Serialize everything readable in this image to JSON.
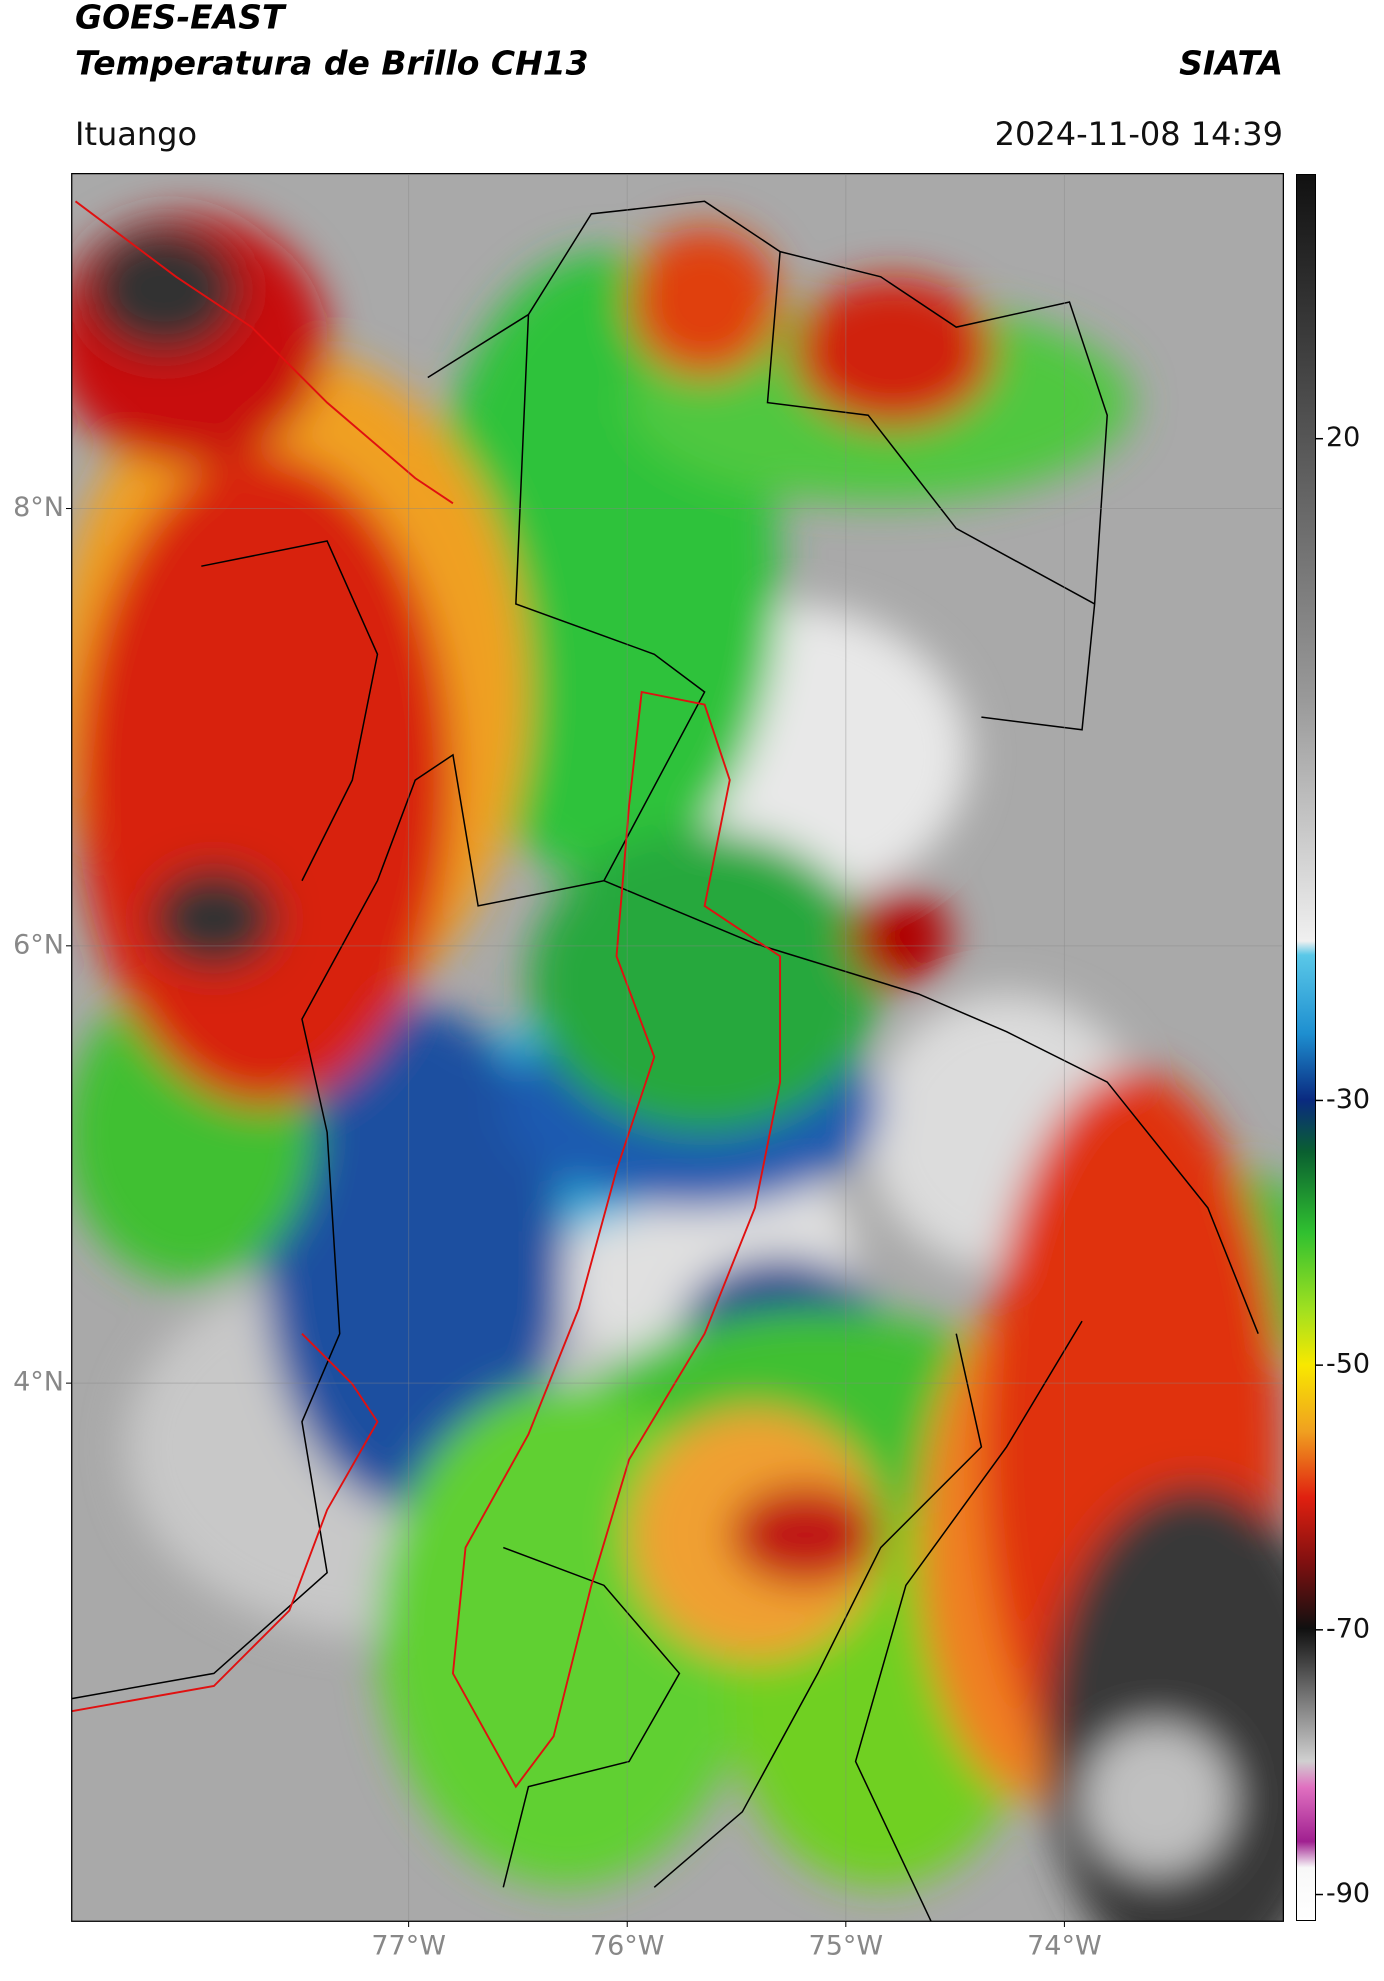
{
  "header": {
    "title": "GOES-EAST",
    "subtitle": "Temperatura de Brillo CH13",
    "source": "SIATA",
    "location": "Ituango",
    "datetime": "2024-11-08 14:39"
  },
  "map": {
    "xlim": [
      -78.54,
      -73.0
    ],
    "ylim": [
      1.54,
      9.53
    ],
    "yticks": [
      {
        "value": 8,
        "label": "8°N"
      },
      {
        "value": 6,
        "label": "6°N"
      },
      {
        "value": 4,
        "label": "4°N"
      }
    ],
    "xticks": [
      {
        "value": -77,
        "label": "77°W"
      },
      {
        "value": -76,
        "label": "76°W"
      },
      {
        "value": -75,
        "label": "75°W"
      },
      {
        "value": -74,
        "label": "74°W"
      }
    ],
    "grid": true
  },
  "colorbar": {
    "clim": [
      -92,
      40
    ],
    "ticks": [
      20,
      -30,
      -50,
      -70,
      -90
    ]
  }
}
